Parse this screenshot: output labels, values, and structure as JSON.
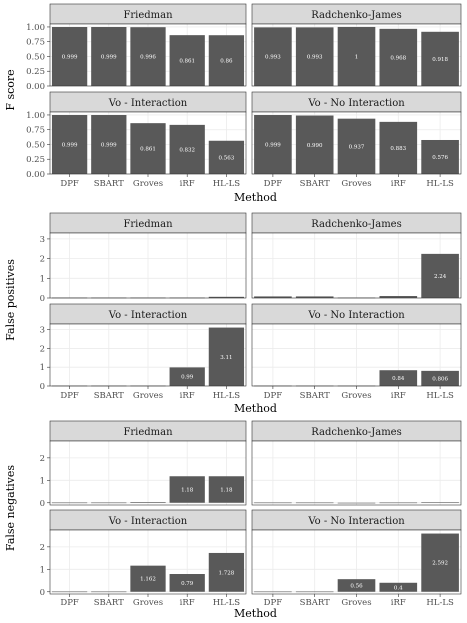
{
  "methods": [
    "DPF",
    "SBART",
    "Groves",
    "iRF",
    "HL-LS"
  ],
  "colors": {
    "bar": "#595959",
    "strip": "#d9d9d9",
    "grid": "#ebebeb",
    "frame": "#333333",
    "tick_text": "#4d4d4d",
    "value_text": "#ffffff"
  },
  "chart_data": [
    {
      "type": "bar",
      "ylabel": "F score",
      "xlabel": "Method",
      "ylim": [
        0,
        1.05
      ],
      "yticks": [
        0.0,
        0.25,
        0.5,
        0.75,
        1.0
      ],
      "ytick_labels": [
        "0.00",
        "0.25",
        "0.50",
        "0.75",
        "1.00"
      ],
      "grid": true,
      "panels": [
        {
          "title": "Friedman",
          "values": [
            0.999,
            0.999,
            0.996,
            0.861,
            0.86
          ],
          "labels": [
            "0.999",
            "0.999",
            "0.996",
            "0.861",
            "0.86"
          ]
        },
        {
          "title": "Radchenko-James",
          "values": [
            0.993,
            0.993,
            1,
            0.968,
            0.918
          ],
          "labels": [
            "0.993",
            "0.993",
            "1",
            "0.968",
            "0.918"
          ]
        },
        {
          "title": "Vo - Interaction",
          "values": [
            0.999,
            0.999,
            0.861,
            0.832,
            0.563
          ],
          "labels": [
            "0.999",
            "0.999",
            "0.861",
            "0.832",
            "0.563"
          ]
        },
        {
          "title": "Vo - No Interaction",
          "values": [
            0.999,
            0.99,
            0.937,
            0.883,
            0.576
          ],
          "labels": [
            "0.999",
            "0.990",
            "0.937",
            "0.883",
            "0.576"
          ]
        }
      ]
    },
    {
      "type": "bar",
      "ylabel": "False positives",
      "xlabel": "Method",
      "ylim": [
        0,
        3.3
      ],
      "yticks": [
        0,
        1,
        2,
        3
      ],
      "ytick_labels": [
        "0",
        "1",
        "2",
        "3"
      ],
      "grid": true,
      "panels": [
        {
          "title": "Friedman",
          "values": [
            0.02,
            0.02,
            0.02,
            0.02,
            0.06
          ],
          "labels": [
            "",
            "",
            "",
            "",
            ""
          ]
        },
        {
          "title": "Radchenko-James",
          "values": [
            0.08,
            0.08,
            0.02,
            0.1,
            2.24
          ],
          "labels": [
            "",
            "",
            "",
            "",
            "2.24"
          ]
        },
        {
          "title": "Vo - Interaction",
          "values": [
            0.02,
            0.02,
            0.02,
            0.99,
            3.11
          ],
          "labels": [
            "",
            "",
            "",
            "0.99",
            "3.11"
          ]
        },
        {
          "title": "Vo - No Interaction",
          "values": [
            0.02,
            0.02,
            0.02,
            0.84,
            0.806
          ],
          "labels": [
            "",
            "",
            "",
            "0.84",
            "0.806"
          ]
        }
      ]
    },
    {
      "type": "bar",
      "ylabel": "False negatives",
      "xlabel": "Method",
      "ylim": [
        -0.1,
        2.75
      ],
      "yticks": [
        0,
        1,
        2
      ],
      "ytick_labels": [
        "0",
        "1",
        "2"
      ],
      "grid": true,
      "panels": [
        {
          "title": "Friedman",
          "values": [
            0.01,
            0.01,
            0.03,
            1.18,
            1.18
          ],
          "labels": [
            "",
            "",
            "",
            "1.18",
            "1.18"
          ]
        },
        {
          "title": "Radchenko-James",
          "values": [
            0.01,
            0.01,
            0.0,
            0.01,
            0.02
          ],
          "labels": [
            "",
            "",
            "",
            "",
            ""
          ]
        },
        {
          "title": "Vo - Interaction",
          "values": [
            0.01,
            0.01,
            1.162,
            0.79,
            1.728
          ],
          "labels": [
            "",
            "",
            "1.162",
            "0.79",
            "1.728"
          ]
        },
        {
          "title": "Vo - No Interaction",
          "values": [
            0.01,
            0.01,
            0.56,
            0.4,
            2.592
          ],
          "labels": [
            "",
            "",
            "0.56",
            "0.4",
            "2.592"
          ]
        }
      ]
    }
  ]
}
